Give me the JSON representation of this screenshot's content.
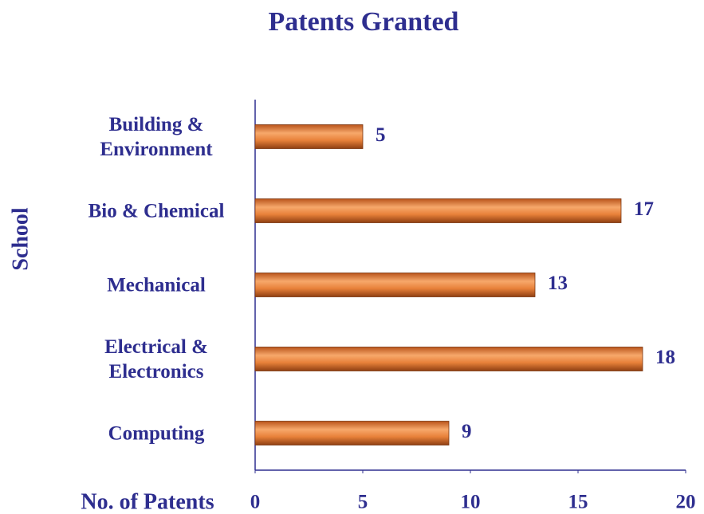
{
  "chart_data": {
    "type": "bar",
    "orientation": "horizontal",
    "title": "Patents Granted",
    "x_label": "No. of Patents",
    "y_label": "School",
    "categories": [
      "Building & Environment",
      "Bio & Chemical",
      "Mechanical",
      "Electrical & Electronics",
      "Computing"
    ],
    "values": [
      5,
      17,
      13,
      18,
      9
    ],
    "color": "#e8813a",
    "xlim": [
      0,
      20
    ],
    "xticks": [
      0,
      5,
      10,
      15,
      20
    ],
    "grid": false
  }
}
